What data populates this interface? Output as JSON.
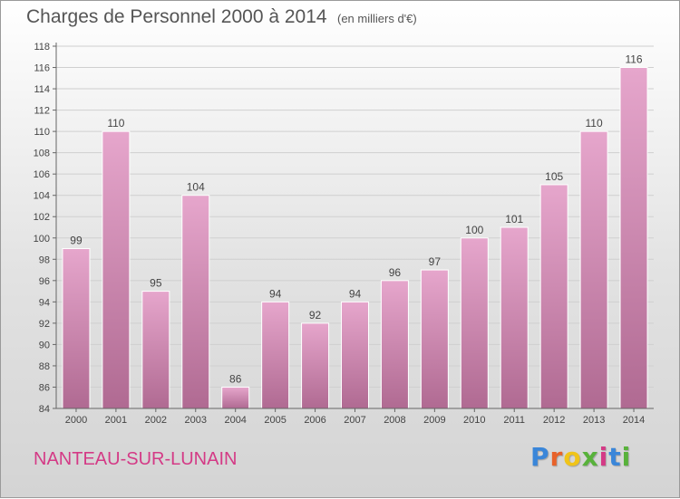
{
  "header": {
    "title": "Charges de Personnel 2000 à 2014",
    "subtitle": "(en milliers d'€)"
  },
  "footer": {
    "place": "NANTEAU-SUR-LUNAIN",
    "logo": [
      "P",
      "r",
      "o",
      "x",
      "i",
      "t",
      "i"
    ]
  },
  "colors": {
    "bar_light": "#e6a6cc",
    "bar_dark": "#b06a92",
    "place_text": "#d43a86",
    "logo_letters": [
      "#3a86d9",
      "#e8622a",
      "#f0c419",
      "#58b23b",
      "#d43a86",
      "#3a86d9",
      "#58b23b"
    ]
  },
  "chart_data": {
    "type": "bar",
    "title": "Charges de Personnel 2000 à 2014",
    "subtitle": "(en milliers d'€)",
    "categories": [
      "2000",
      "2001",
      "2002",
      "2003",
      "2004",
      "2005",
      "2006",
      "2007",
      "2008",
      "2009",
      "2010",
      "2011",
      "2012",
      "2013",
      "2014"
    ],
    "values": [
      99,
      110,
      95,
      104,
      86,
      94,
      92,
      94,
      96,
      97,
      100,
      101,
      105,
      110,
      116
    ],
    "data_labels": [
      "99",
      "110",
      "95",
      "104",
      "86",
      "94",
      "92",
      "94",
      "96",
      "97",
      "100",
      "101",
      "105",
      "110",
      "116"
    ],
    "ylim": [
      84,
      118
    ],
    "yticks": [
      "84",
      "86",
      "88",
      "90",
      "92",
      "94",
      "96",
      "98",
      "100",
      "102",
      "104",
      "106",
      "108",
      "110",
      "112",
      "114",
      "116",
      "118"
    ],
    "grid": true
  }
}
